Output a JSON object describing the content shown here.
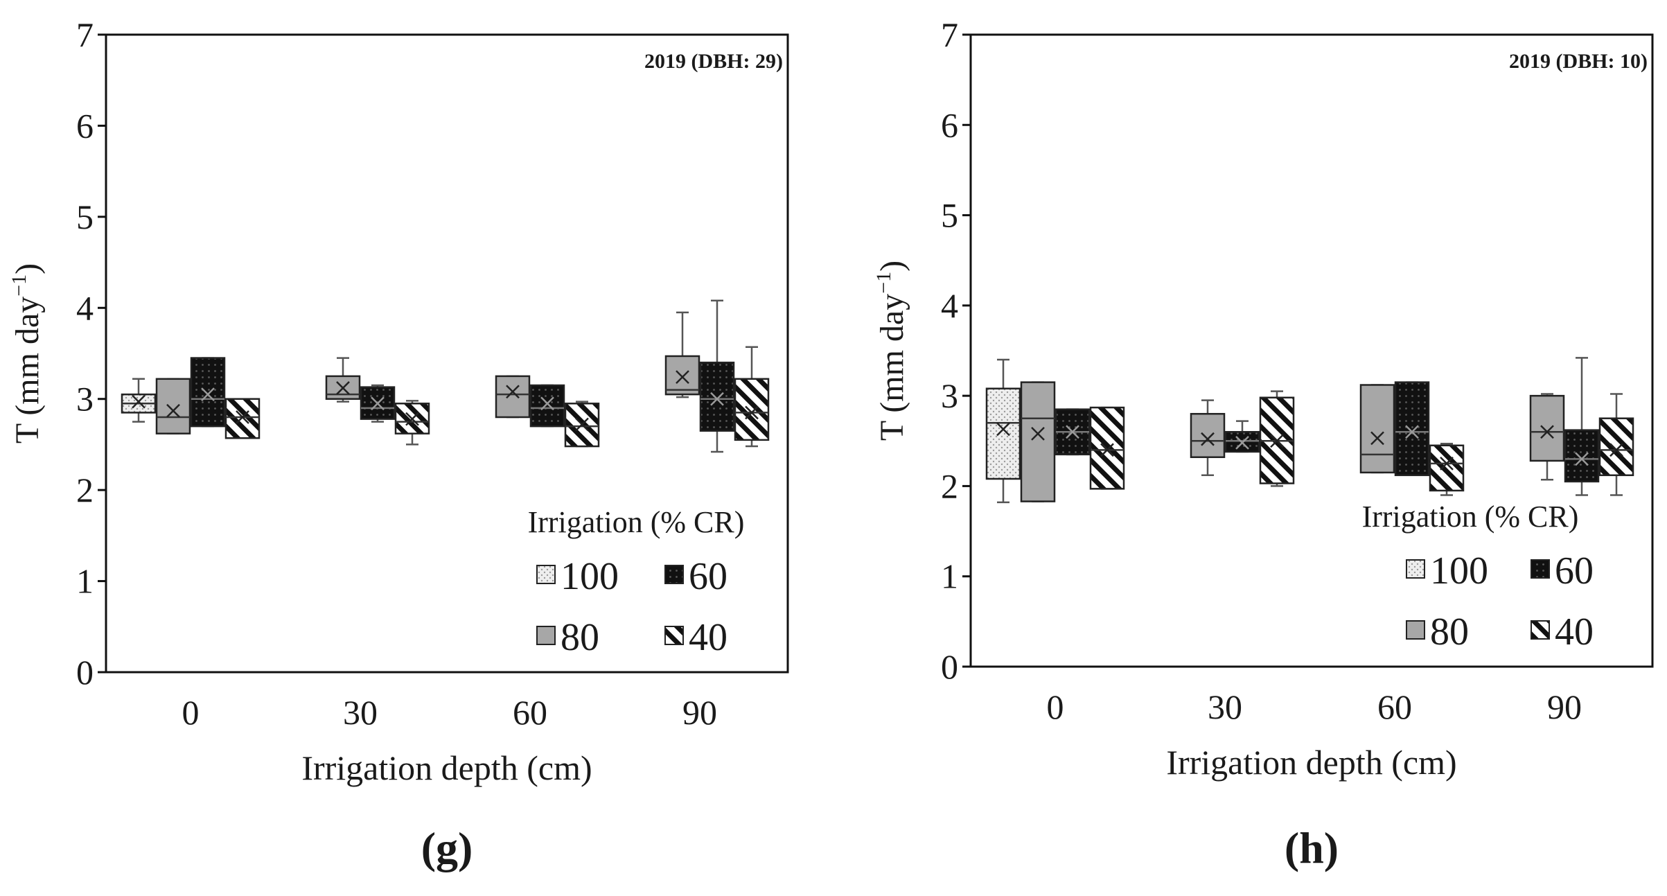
{
  "figure": {
    "panels": [
      {
        "label": "(g)"
      },
      {
        "label": "(h)"
      }
    ]
  },
  "colors": {
    "axis": "#111111",
    "fill_100": "#eeeeee",
    "fill_80": "#a7a7a7",
    "fill_60": "#111111",
    "fill_40": "#ffffff",
    "whisker": "#555555"
  },
  "chart_data": [
    {
      "type": "box",
      "panel_label": "(g)",
      "annotation": "2019 (DBH: 29)",
      "ylabel": "T (mm day",
      "ylabel_sup": "−1",
      "ylabel_close": ")",
      "xlabel": "Irrigation depth (cm)",
      "ylim": [
        0,
        7
      ],
      "yticks": [
        0,
        1,
        2,
        3,
        4,
        5,
        6,
        7
      ],
      "categories": [
        "0",
        "30",
        "60",
        "90"
      ],
      "legend": {
        "title": "Irrigation (% CR)",
        "position": "bottom-right",
        "entries": [
          "100",
          "60",
          "80",
          "40"
        ]
      },
      "series": [
        {
          "name": "100",
          "pattern": "dots",
          "boxes": [
            {
              "q1": 2.85,
              "q3": 3.05,
              "median": 2.95,
              "mean": 2.97,
              "min": 2.75,
              "max": 3.22
            },
            null,
            null,
            null
          ]
        },
        {
          "name": "80",
          "pattern": "gray",
          "boxes": [
            {
              "q1": 2.62,
              "q3": 3.22,
              "median": 2.8,
              "mean": 2.87,
              "min": 2.62,
              "max": 3.22
            },
            {
              "q1": 3.0,
              "q3": 3.25,
              "median": 3.05,
              "mean": 3.12,
              "min": 2.97,
              "max": 3.45
            },
            {
              "q1": 2.8,
              "q3": 3.25,
              "median": 3.05,
              "mean": 3.08,
              "min": 2.8,
              "max": 3.25
            },
            {
              "q1": 3.05,
              "q3": 3.47,
              "median": 3.1,
              "mean": 3.24,
              "min": 3.02,
              "max": 3.95
            }
          ]
        },
        {
          "name": "60",
          "pattern": "black",
          "boxes": [
            {
              "q1": 2.7,
              "q3": 3.45,
              "median": 3.0,
              "mean": 3.05,
              "min": 2.7,
              "max": 3.45
            },
            {
              "q1": 2.78,
              "q3": 3.13,
              "median": 2.9,
              "mean": 2.95,
              "min": 2.75,
              "max": 3.15
            },
            {
              "q1": 2.7,
              "q3": 3.15,
              "median": 2.9,
              "mean": 2.95,
              "min": 2.7,
              "max": 3.15
            },
            {
              "q1": 2.65,
              "q3": 3.4,
              "median": 3.0,
              "mean": 3.0,
              "min": 2.42,
              "max": 4.08
            }
          ]
        },
        {
          "name": "40",
          "pattern": "hatch",
          "boxes": [
            {
              "q1": 2.57,
              "q3": 3.0,
              "median": 2.8,
              "mean": 2.8,
              "min": 2.57,
              "max": 3.0
            },
            {
              "q1": 2.62,
              "q3": 2.95,
              "median": 2.75,
              "mean": 2.78,
              "min": 2.5,
              "max": 2.98
            },
            {
              "q1": 2.48,
              "q3": 2.95,
              "median": 2.7,
              "mean": 2.72,
              "min": 2.48,
              "max": 2.97
            },
            {
              "q1": 2.55,
              "q3": 3.22,
              "median": 2.85,
              "mean": 2.85,
              "min": 2.48,
              "max": 3.57
            }
          ]
        }
      ]
    },
    {
      "type": "box",
      "panel_label": "(h)",
      "annotation": "2019 (DBH: 10)",
      "ylabel": "T (mm day",
      "ylabel_sup": "−1",
      "ylabel_close": ")",
      "xlabel": "Irrigation depth (cm)",
      "ylim": [
        0,
        7
      ],
      "yticks": [
        0,
        1,
        2,
        3,
        4,
        5,
        6,
        7
      ],
      "categories": [
        "0",
        "30",
        "60",
        "90"
      ],
      "legend": {
        "title": "Irrigation (% CR)",
        "position": "bottom-right",
        "entries": [
          "100",
          "60",
          "80",
          "40"
        ]
      },
      "series": [
        {
          "name": "100",
          "pattern": "dots",
          "boxes": [
            {
              "q1": 2.08,
              "q3": 3.08,
              "median": 2.7,
              "mean": 2.63,
              "min": 1.82,
              "max": 3.4
            },
            null,
            null,
            null
          ]
        },
        {
          "name": "80",
          "pattern": "gray",
          "boxes": [
            {
              "q1": 1.83,
              "q3": 3.15,
              "median": 2.75,
              "mean": 2.58,
              "min": 1.83,
              "max": 3.15
            },
            {
              "q1": 2.32,
              "q3": 2.8,
              "median": 2.5,
              "mean": 2.52,
              "min": 2.12,
              "max": 2.95
            },
            {
              "q1": 2.15,
              "q3": 3.12,
              "median": 2.35,
              "mean": 2.53,
              "min": 2.15,
              "max": 3.12
            },
            {
              "q1": 2.28,
              "q3": 3.0,
              "median": 2.6,
              "mean": 2.6,
              "min": 2.07,
              "max": 3.02
            }
          ]
        },
        {
          "name": "60",
          "pattern": "black",
          "boxes": [
            {
              "q1": 2.35,
              "q3": 2.85,
              "median": 2.6,
              "mean": 2.6,
              "min": 2.35,
              "max": 2.85
            },
            {
              "q1": 2.38,
              "q3": 2.6,
              "median": 2.5,
              "mean": 2.48,
              "min": 2.38,
              "max": 2.72
            },
            {
              "q1": 2.12,
              "q3": 3.15,
              "median": 2.6,
              "mean": 2.6,
              "min": 2.12,
              "max": 3.15
            },
            {
              "q1": 2.05,
              "q3": 2.62,
              "median": 2.3,
              "mean": 2.3,
              "min": 1.9,
              "max": 3.42
            }
          ]
        },
        {
          "name": "40",
          "pattern": "hatch",
          "boxes": [
            {
              "q1": 1.97,
              "q3": 2.87,
              "median": 2.4,
              "mean": 2.4,
              "min": 1.97,
              "max": 2.87
            },
            {
              "q1": 2.03,
              "q3": 2.98,
              "median": 2.5,
              "mean": 2.5,
              "min": 2.0,
              "max": 3.05
            },
            {
              "q1": 1.95,
              "q3": 2.45,
              "median": 2.25,
              "mean": 2.25,
              "min": 1.9,
              "max": 2.47
            },
            {
              "q1": 2.12,
              "q3": 2.75,
              "median": 2.4,
              "mean": 2.4,
              "min": 1.9,
              "max": 3.02
            }
          ]
        }
      ]
    }
  ]
}
